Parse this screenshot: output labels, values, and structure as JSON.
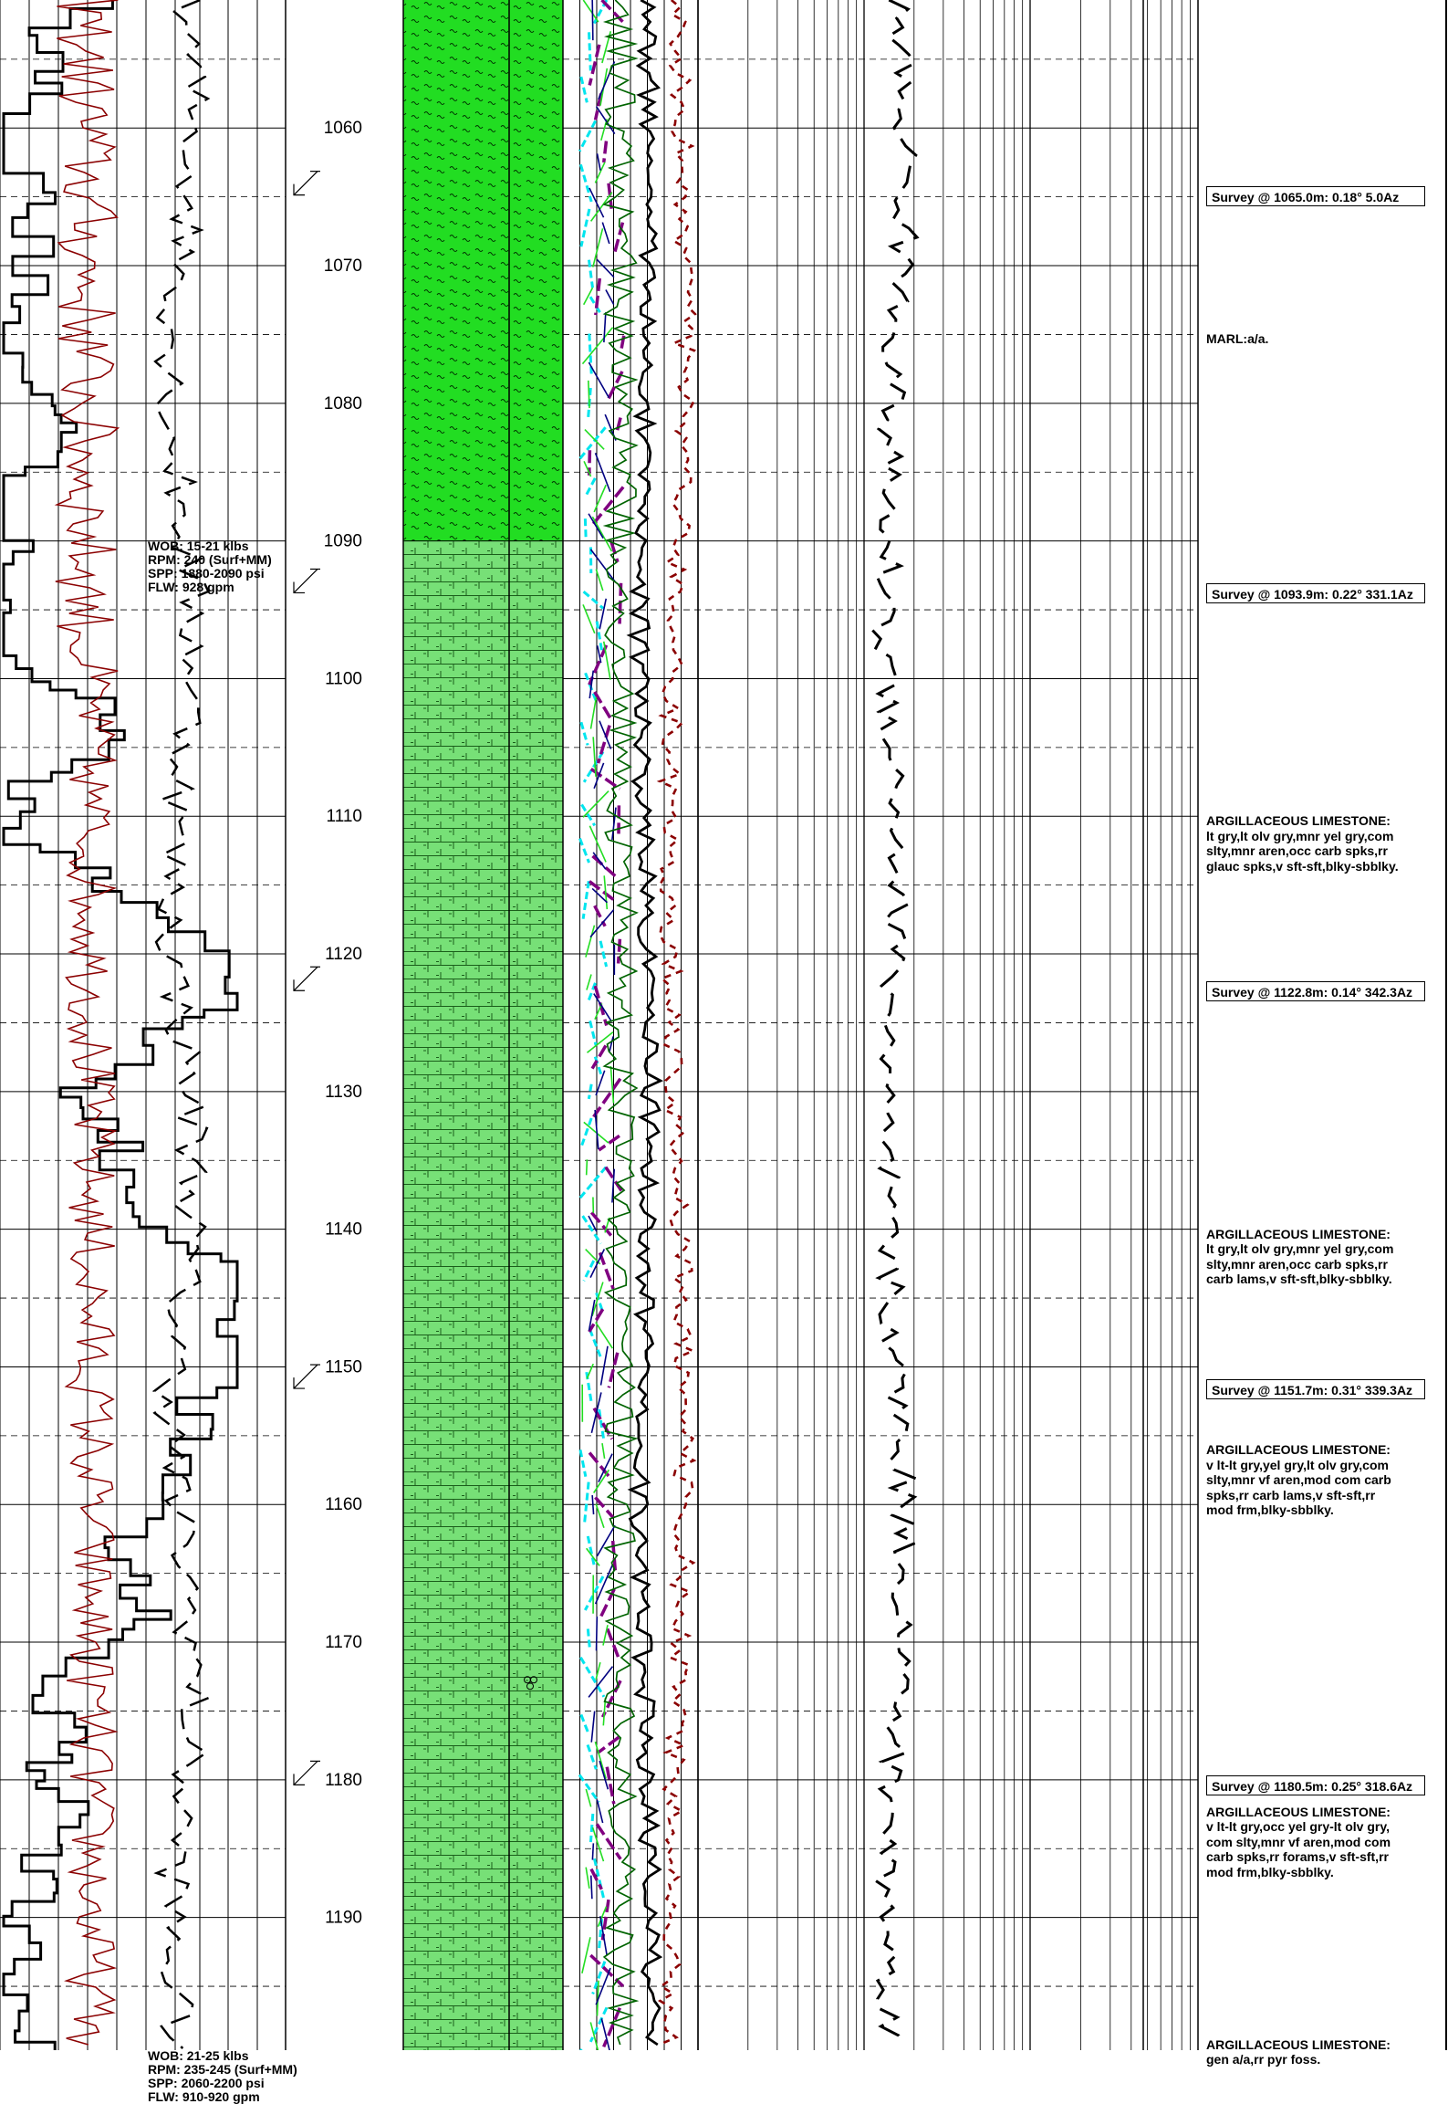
{
  "chart_data": {
    "type": "line",
    "title": "",
    "depth_axis": {
      "unit": "m",
      "range": [
        1050,
        1200
      ],
      "tick_labels": [
        "1060",
        "1070",
        "1080",
        "1090",
        "1100",
        "1110",
        "1120",
        "1130",
        "1140",
        "1150",
        "1160",
        "1170",
        "1180",
        "1190"
      ]
    },
    "lithology": [
      {
        "from": 1050,
        "to": 1090,
        "name": "MARL",
        "color": "#22dd22"
      },
      {
        "from": 1090,
        "to": 1200,
        "name": "ARGILLACEOUS LIMESTONE",
        "color": "#77e077"
      }
    ],
    "fossil_marker_depth": 1173,
    "survey_depths": [
      1065.0,
      1093.9,
      1122.8,
      1151.7,
      1180.5
    ],
    "series": [
      {
        "name": "",
        "color": "#000000",
        "style": "step",
        "track": "left"
      },
      {
        "name": "",
        "color": "#8b0000",
        "style": "zigzag",
        "track": "left"
      },
      {
        "name": "",
        "color": "#000000",
        "style": "dashed",
        "track": "left"
      },
      {
        "name": "",
        "color": "#00e5ee",
        "style": "segments",
        "track": "gas"
      },
      {
        "name": "",
        "color": "#800080",
        "style": "segments",
        "track": "gas"
      },
      {
        "name": "",
        "color": "#006400",
        "style": "line",
        "track": "gas"
      },
      {
        "name": "",
        "color": "#000000",
        "style": "line",
        "track": "gas"
      },
      {
        "name": "",
        "color": "#8b0000",
        "style": "dashed",
        "track": "gas"
      },
      {
        "name": "",
        "color": "#000000",
        "style": "dashed",
        "track": "log"
      }
    ]
  },
  "surveys": [
    {
      "text": "Survey @ 1065.0m: 0.18° 5.0Az",
      "depth": 1065.0
    },
    {
      "text": "Survey @ 1093.9m: 0.22° 331.1Az",
      "depth": 1093.9
    },
    {
      "text": "Survey @ 1122.8m: 0.14° 342.3Az",
      "depth": 1122.8
    },
    {
      "text": "Survey @ 1151.7m: 0.31° 339.3Az",
      "depth": 1151.7
    },
    {
      "text": "Survey @ 1180.5m: 0.25° 318.6Az",
      "depth": 1180.5
    }
  ],
  "descriptions": [
    {
      "text": "MARL:a/a.",
      "depth": 1074.8
    },
    {
      "text": "ARGILLACEOUS LIMESTONE:\nlt gry,lt olv gry,mnr yel gry,com\nslty,mnr aren,occ carb spks,rr\nglauc spks,v sft-sft,blky-sbblky.",
      "depth": 1109.8
    },
    {
      "text": "ARGILLACEOUS LIMESTONE:\nlt gry,lt olv gry,mnr yel gry,com\nslty,mnr aren,occ carb spks,rr\ncarb lams,v sft-sft,blky-sbblky.",
      "depth": 1139.8
    },
    {
      "text": "ARGILLACEOUS LIMESTONE:\nv lt-lt gry,yel gry,lt olv gry,com\nslty,mnr vf aren,mod com carb\nspks,rr carb lams,v sft-sft,rr\nmod frm,blky-sbblky.",
      "depth": 1155.5
    },
    {
      "text": "ARGILLACEOUS LIMESTONE:\nv lt-lt gry,occ yel gry-lt olv gry,\ncom slty,mnr vf aren,mod com\ncarb spks,rr forams,v sft-sft,rr\nmod frm,blky-sbblky.",
      "depth": 1181.8
    },
    {
      "text": "ARGILLACEOUS LIMESTONE:\ngen a/a,rr pyr foss.",
      "depth": 1198.7
    }
  ],
  "drilling_params": [
    {
      "depth": 1090.0,
      "lines": [
        "WOB: 15-21 klbs",
        "RPM: 240 (Surf+MM)",
        "SPP: 1880-2090 psi",
        "FLW: 928 gpm"
      ]
    },
    {
      "depth": 1199.7,
      "lines": [
        "WOB: 21-25 klbs",
        "RPM: 235-245 (Surf+MM)",
        "SPP: 2060-2200 psi",
        "FLW: 910-920 gpm"
      ]
    }
  ]
}
